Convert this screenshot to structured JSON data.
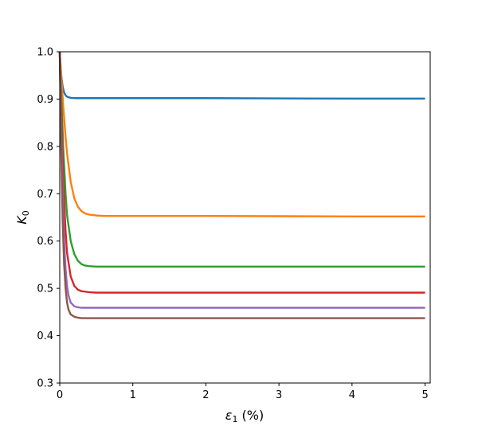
{
  "chart_data": {
    "type": "line",
    "title": "",
    "xlabel_symbol": "ε",
    "xlabel_subscript": "1",
    "xlabel_suffix": " (%)",
    "ylabel_symbol": "K",
    "ylabel_subscript": "0",
    "xlim": [
      0,
      5.07
    ],
    "ylim": [
      0.3,
      1.0
    ],
    "xticks": [
      0,
      1,
      2,
      3,
      4,
      5
    ],
    "xtick_labels": [
      "0",
      "1",
      "2",
      "3",
      "4",
      "5"
    ],
    "yticks": [
      0.3,
      0.4,
      0.5,
      0.6,
      0.7,
      0.8,
      0.9,
      1.0
    ],
    "ytick_labels": [
      "0.3",
      "0.4",
      "0.5",
      "0.6",
      "0.7",
      "0.8",
      "0.9",
      "1.0"
    ],
    "grid": false,
    "legend": false,
    "series": [
      {
        "name": "series-1",
        "color": "#1f77b4",
        "x": [
          0,
          0.01,
          0.02,
          0.04,
          0.06,
          0.08,
          0.1,
          0.15,
          0.2,
          0.3,
          0.4,
          0.6,
          1.0,
          2.0,
          3.0,
          4.0,
          5.0
        ],
        "y": [
          1.0,
          0.972,
          0.951,
          0.926,
          0.914,
          0.908,
          0.905,
          0.9025,
          0.902,
          0.902,
          0.902,
          0.902,
          0.902,
          0.902,
          0.9015,
          0.901,
          0.901
        ]
      },
      {
        "name": "series-2",
        "color": "#ff7f0e",
        "x": [
          0,
          0.02,
          0.05,
          0.08,
          0.1,
          0.15,
          0.2,
          0.25,
          0.3,
          0.35,
          0.4,
          0.5,
          0.6,
          0.8,
          1.0,
          2.0,
          3.0,
          4.0,
          5.0
        ],
        "y": [
          1.0,
          0.95,
          0.88,
          0.82,
          0.785,
          0.725,
          0.69,
          0.672,
          0.663,
          0.658,
          0.656,
          0.654,
          0.653,
          0.653,
          0.653,
          0.653,
          0.6525,
          0.652,
          0.652
        ]
      },
      {
        "name": "series-3",
        "color": "#2ca02c",
        "x": [
          0,
          0.02,
          0.05,
          0.08,
          0.1,
          0.15,
          0.2,
          0.25,
          0.3,
          0.35,
          0.4,
          0.5,
          0.6,
          0.8,
          1.0,
          2.0,
          3.0,
          4.0,
          5.0
        ],
        "y": [
          1.0,
          0.91,
          0.79,
          0.7,
          0.655,
          0.6,
          0.572,
          0.558,
          0.551,
          0.548,
          0.547,
          0.546,
          0.546,
          0.546,
          0.546,
          0.546,
          0.546,
          0.546,
          0.546
        ]
      },
      {
        "name": "series-4",
        "color": "#d62728",
        "x": [
          0,
          0.02,
          0.05,
          0.08,
          0.1,
          0.15,
          0.2,
          0.25,
          0.3,
          0.4,
          0.5,
          0.6,
          0.8,
          1.0,
          2.0,
          3.0,
          4.0,
          5.0
        ],
        "y": [
          1.0,
          0.87,
          0.72,
          0.62,
          0.575,
          0.525,
          0.505,
          0.497,
          0.494,
          0.492,
          0.491,
          0.491,
          0.491,
          0.491,
          0.491,
          0.491,
          0.491,
          0.491
        ]
      },
      {
        "name": "series-5",
        "color": "#9467bd",
        "x": [
          0,
          0.02,
          0.04,
          0.06,
          0.08,
          0.1,
          0.12,
          0.15,
          0.2,
          0.25,
          0.3,
          0.4,
          0.5,
          0.6,
          0.8,
          1.0,
          2.0,
          3.0,
          4.0,
          5.0
        ],
        "y": [
          1.0,
          0.83,
          0.7,
          0.6,
          0.54,
          0.505,
          0.485,
          0.47,
          0.462,
          0.46,
          0.459,
          0.459,
          0.459,
          0.459,
          0.459,
          0.459,
          0.459,
          0.459,
          0.459,
          0.459
        ]
      },
      {
        "name": "series-6",
        "color": "#8c564b",
        "x": [
          0,
          0.02,
          0.04,
          0.06,
          0.08,
          0.1,
          0.12,
          0.15,
          0.2,
          0.25,
          0.3,
          0.4,
          0.5,
          0.6,
          0.8,
          1.0,
          2.0,
          3.0,
          4.0,
          5.0
        ],
        "y": [
          1.0,
          0.8,
          0.64,
          0.55,
          0.5,
          0.47,
          0.455,
          0.445,
          0.44,
          0.438,
          0.437,
          0.437,
          0.437,
          0.437,
          0.437,
          0.437,
          0.437,
          0.437,
          0.437,
          0.437
        ]
      }
    ]
  }
}
